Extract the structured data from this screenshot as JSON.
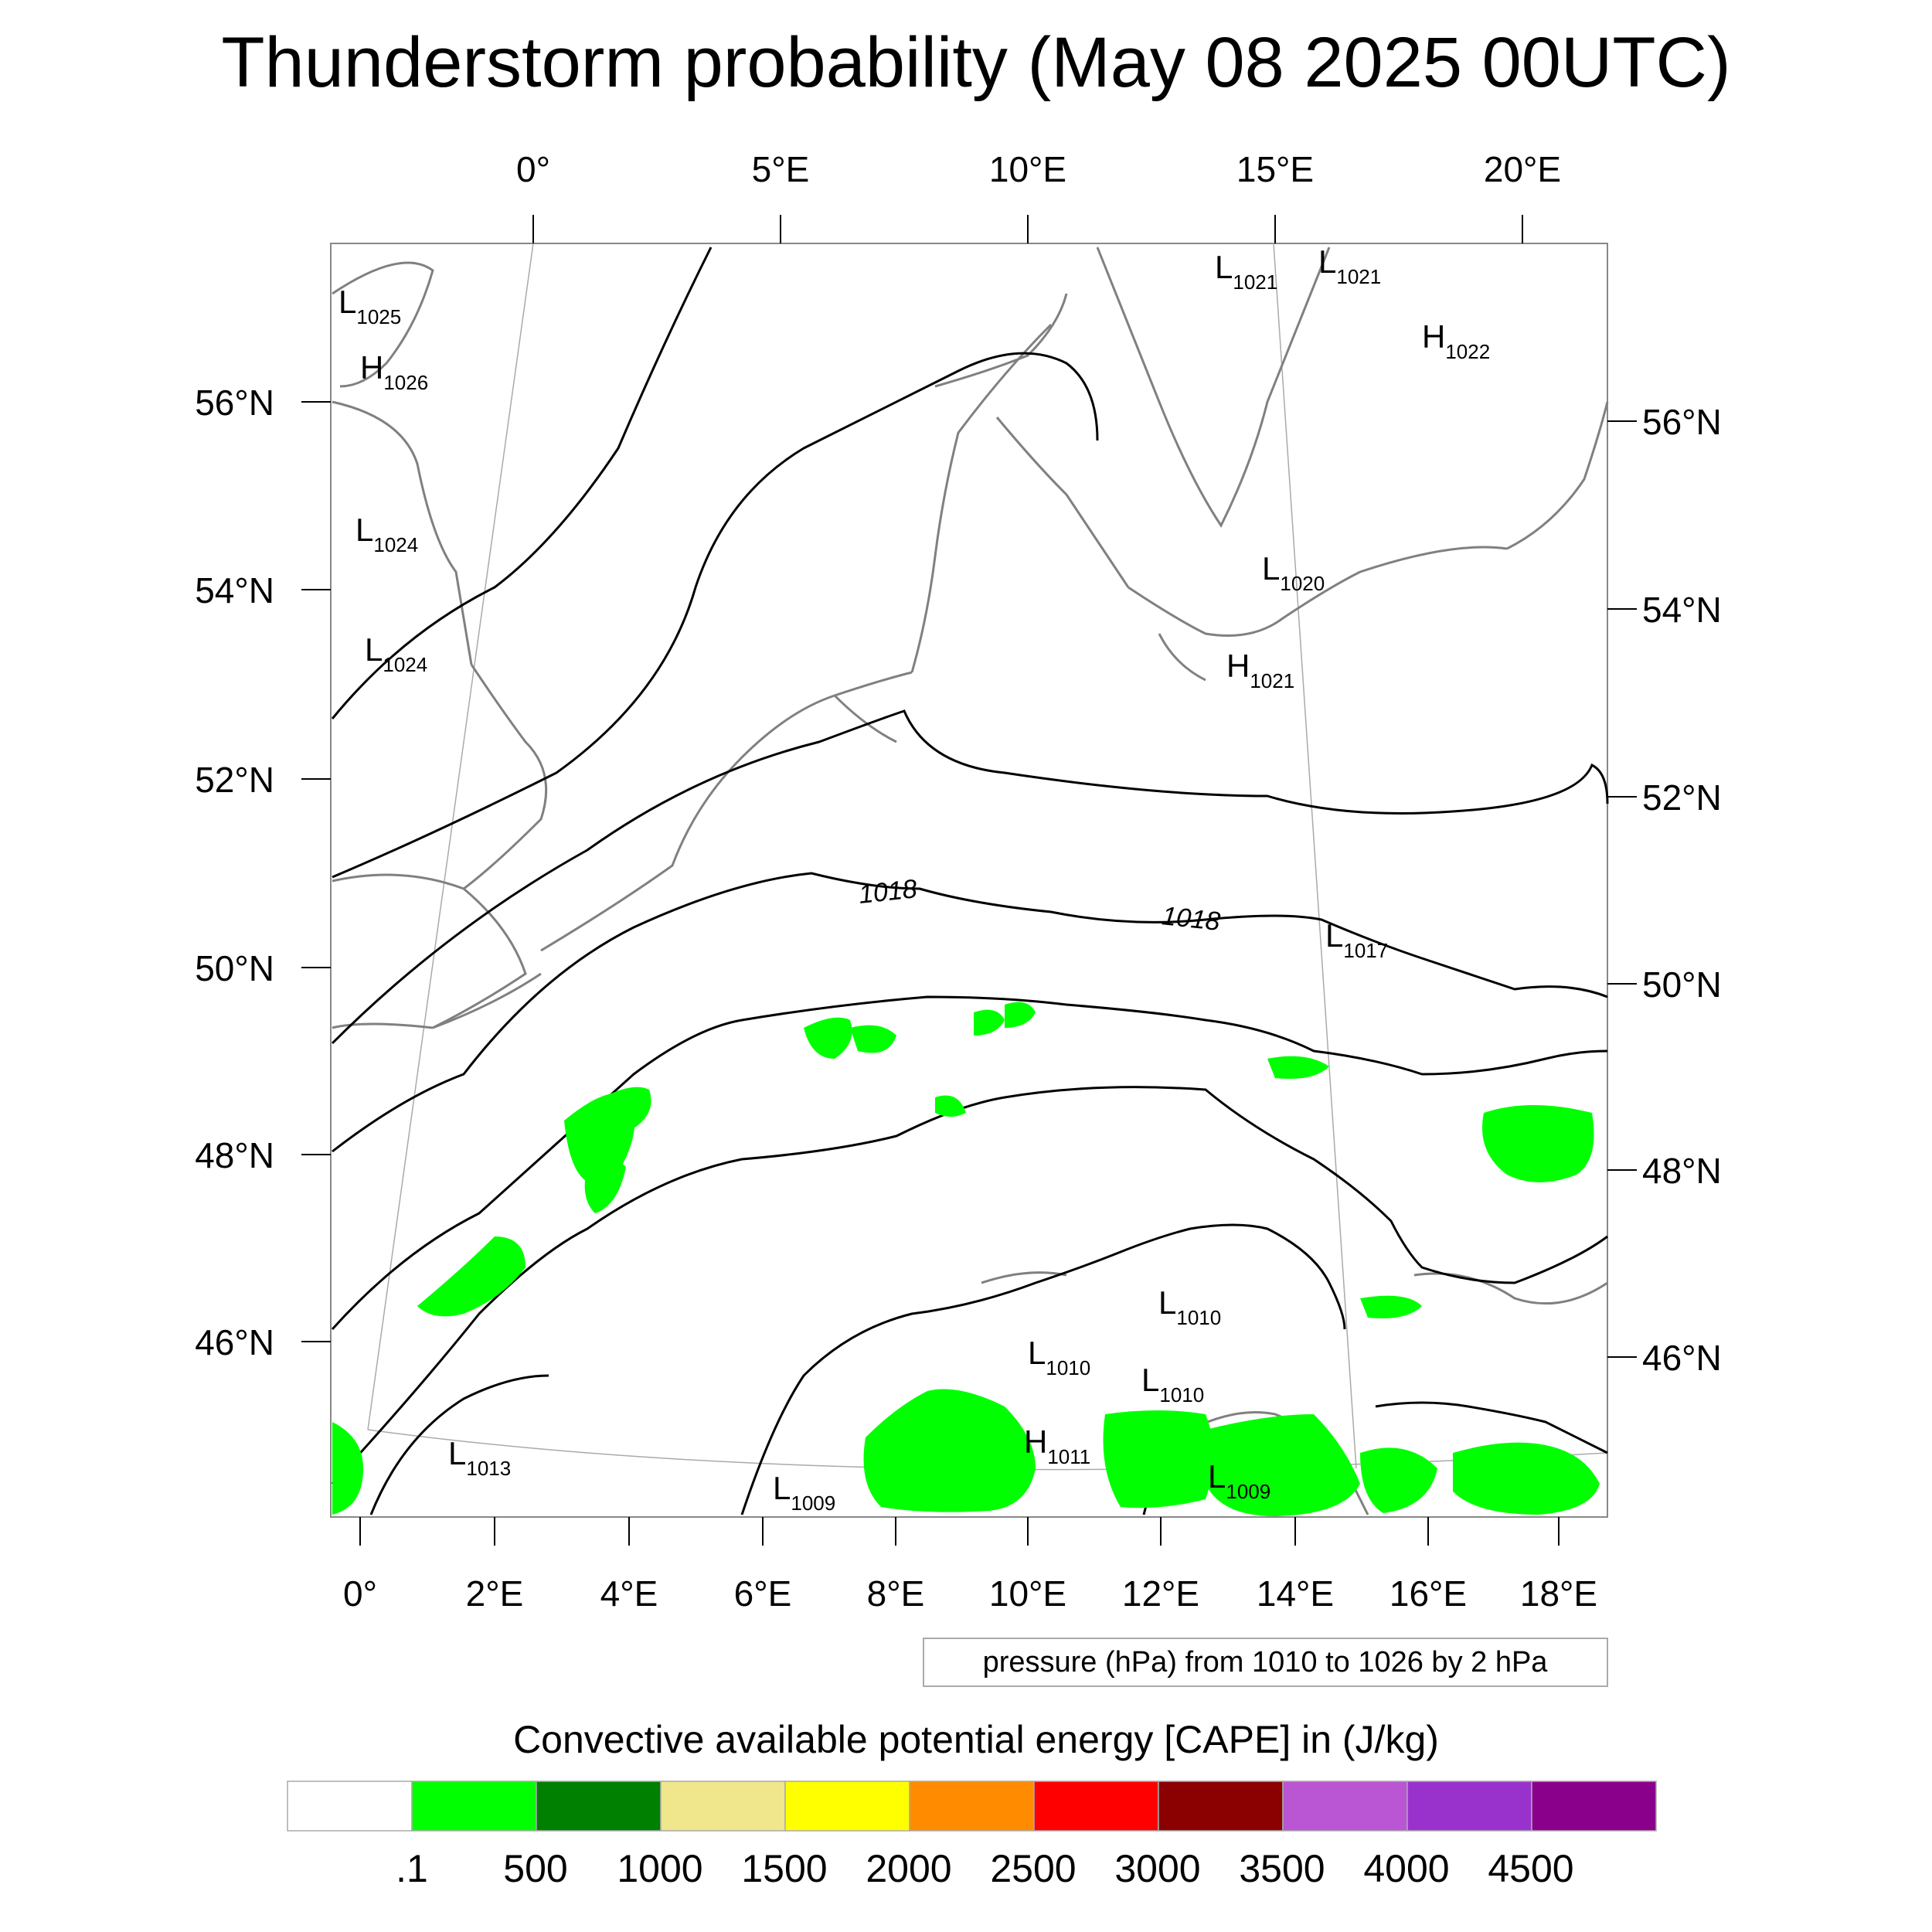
{
  "title": "Thunderstorm probability (May 08 2025 00UTC)",
  "axes": {
    "top_lon": [
      "0°",
      "5°E",
      "10°E",
      "15°E",
      "20°E"
    ],
    "bottom_lon": [
      "0°",
      "2°E",
      "4°E",
      "6°E",
      "8°E",
      "10°E",
      "12°E",
      "14°E",
      "16°E",
      "18°E"
    ],
    "left_lat": [
      "56°N",
      "54°N",
      "52°N",
      "50°N",
      "48°N",
      "46°N"
    ],
    "right_lat": [
      "56°N",
      "54°N",
      "52°N",
      "50°N",
      "48°N",
      "46°N"
    ]
  },
  "pressure_systems": [
    {
      "type": "L",
      "value": "1025"
    },
    {
      "type": "H",
      "value": "1026"
    },
    {
      "type": "L",
      "value": "1024"
    },
    {
      "type": "L",
      "value": "1024"
    },
    {
      "type": "L",
      "value": "1021"
    },
    {
      "type": "L",
      "value": "1021"
    },
    {
      "type": "H",
      "value": "1022"
    },
    {
      "type": "L",
      "value": "1020"
    },
    {
      "type": "H",
      "value": "1021"
    },
    {
      "type": "L",
      "value": "1017"
    },
    {
      "type": "L",
      "value": "1010"
    },
    {
      "type": "L",
      "value": "1010"
    },
    {
      "type": "L",
      "value": "1010"
    },
    {
      "type": "H",
      "value": "1011"
    },
    {
      "type": "L",
      "value": "1013"
    },
    {
      "type": "L",
      "value": "1009"
    },
    {
      "type": "L",
      "value": "1009"
    }
  ],
  "contour_labels": [
    "1018",
    "1018"
  ],
  "contour_info": "pressure (hPa) from 1010 to 1026 by 2 hPa",
  "colorbar": {
    "title": "Convective available potential energy [CAPE] in (J/kg)",
    "colors": [
      "#ffffff",
      "#00ff00",
      "#008000",
      "#f0e68c",
      "#ffff00",
      "#ff8c00",
      "#ff0000",
      "#8b0000",
      "#ba55d3",
      "#9932cc",
      "#8b008b"
    ],
    "labels": [
      ".1",
      "500",
      "1000",
      "1500",
      "2000",
      "2500",
      "3000",
      "3500",
      "4000",
      "4500"
    ]
  }
}
